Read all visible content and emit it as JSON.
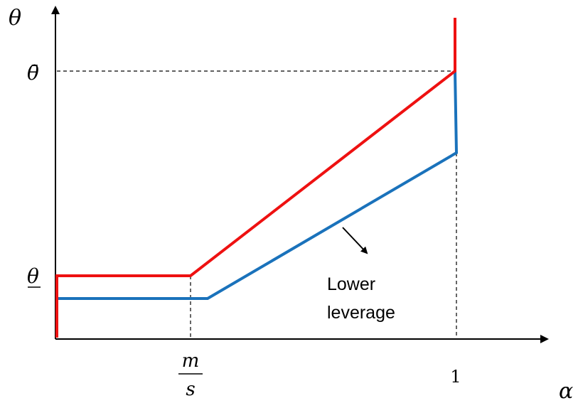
{
  "labels": {
    "y_axis": "θ",
    "x_axis": "α",
    "theta_bar": "θ̄",
    "theta_under": "θ",
    "m_over_s_num": "m",
    "m_over_s_den": "s",
    "one": "1",
    "annotation_line1": "Lower",
    "annotation_line2": "leverage"
  },
  "colors": {
    "red_curve": "#ee1111",
    "blue_curve": "#1a72bb",
    "axis": "#000000"
  },
  "icons": {
    "annotation_arrow": "arrow-down-right-icon"
  }
}
